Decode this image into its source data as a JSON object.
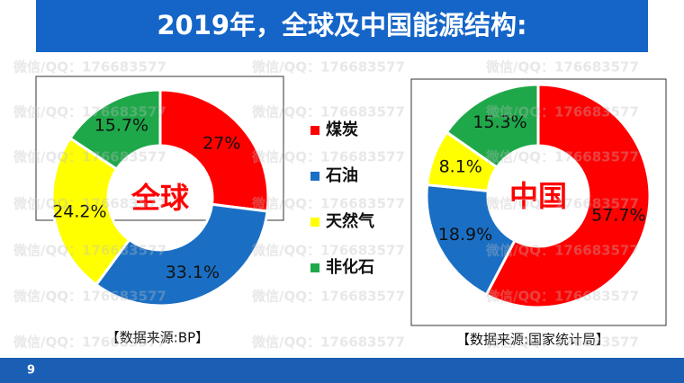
{
  "title": "2019年，全球及中国能源结构:",
  "watermark": "微信/QQ：176683577",
  "page_number": "9",
  "chart_data": [
    {
      "type": "donut",
      "title": "全球",
      "source": "【数据来源:BP】",
      "categories": [
        "煤炭",
        "石油",
        "天然气",
        "非化石"
      ],
      "values": [
        27,
        33.1,
        24.2,
        15.7
      ],
      "value_labels": [
        "27%",
        "33.1%",
        "24.2%",
        "15.7%"
      ],
      "colors": [
        "#ff0000",
        "#1a6fc4",
        "#ffff00",
        "#1fa84a"
      ],
      "legend": "right"
    },
    {
      "type": "donut",
      "title": "中国",
      "source": "【数据来源:国家统计局】",
      "categories": [
        "煤炭",
        "石油",
        "天然气",
        "非化石"
      ],
      "values": [
        57.7,
        18.9,
        8.1,
        15.3
      ],
      "value_labels": [
        "57.7%",
        "18.9%",
        "8.1%",
        "15.3%"
      ],
      "colors": [
        "#ff0000",
        "#1a6fc4",
        "#ffff00",
        "#1fa84a"
      ]
    }
  ]
}
